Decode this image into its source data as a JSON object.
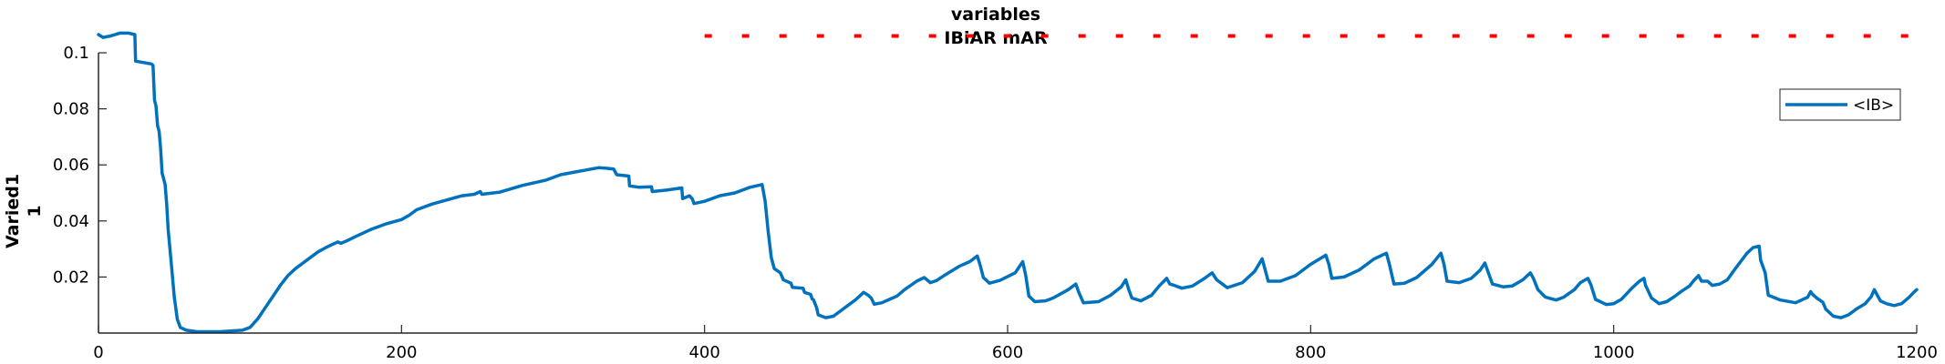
{
  "chart_data": {
    "type": "line",
    "title": [
      "variables",
      "IBiAR mAR"
    ],
    "ylabel": [
      "Varied1",
      "1"
    ],
    "xlabel": "",
    "xlim": [
      0,
      1200
    ],
    "ylim": [
      0,
      0.1
    ],
    "xticks": [
      0,
      200,
      400,
      600,
      800,
      1000,
      1200
    ],
    "xtick_labels": [
      "0",
      "200",
      "400",
      "600",
      "800",
      "1000",
      "1200"
    ],
    "yticks": [
      0.02,
      0.04,
      0.06,
      0.08,
      0.1
    ],
    "ytick_labels": [
      "0.02",
      "0.04",
      "0.06",
      "0.08",
      "0.1"
    ],
    "grid": false,
    "legend_position": "top-right",
    "series": [
      {
        "name": "<IB>",
        "color": "#0072BD",
        "points": [
          [
            0,
            0.1065
          ],
          [
            3,
            0.1055
          ],
          [
            8,
            0.106
          ],
          [
            14,
            0.107
          ],
          [
            20,
            0.107
          ],
          [
            24,
            0.1065
          ],
          [
            24.5,
            0.097
          ],
          [
            30,
            0.0965
          ],
          [
            35,
            0.096
          ],
          [
            36,
            0.0955
          ],
          [
            37,
            0.083
          ],
          [
            38,
            0.081
          ],
          [
            39,
            0.074
          ],
          [
            40,
            0.072
          ],
          [
            41,
            0.066
          ],
          [
            42,
            0.057
          ],
          [
            43,
            0.055
          ],
          [
            44,
            0.053
          ],
          [
            45,
            0.046
          ],
          [
            46,
            0.037
          ],
          [
            48,
            0.025
          ],
          [
            50,
            0.013
          ],
          [
            52,
            0.005
          ],
          [
            54,
            0.002
          ],
          [
            58,
            0.001
          ],
          [
            65,
            0.0005
          ],
          [
            80,
            0.0005
          ],
          [
            95,
            0.001
          ],
          [
            100,
            0.002
          ],
          [
            105,
            0.005
          ],
          [
            110,
            0.009
          ],
          [
            115,
            0.013
          ],
          [
            120,
            0.017
          ],
          [
            125,
            0.0205
          ],
          [
            130,
            0.023
          ],
          [
            135,
            0.025
          ],
          [
            140,
            0.027
          ],
          [
            145,
            0.029
          ],
          [
            150,
            0.0305
          ],
          [
            155,
            0.0318
          ],
          [
            158,
            0.0325
          ],
          [
            160,
            0.032
          ],
          [
            163,
            0.0327
          ],
          [
            170,
            0.0345
          ],
          [
            180,
            0.037
          ],
          [
            190,
            0.039
          ],
          [
            200,
            0.0405
          ],
          [
            205,
            0.042
          ],
          [
            210,
            0.044
          ],
          [
            220,
            0.046
          ],
          [
            230,
            0.0475
          ],
          [
            240,
            0.049
          ],
          [
            248,
            0.0495
          ],
          [
            252,
            0.0505
          ],
          [
            253,
            0.0495
          ],
          [
            265,
            0.0503
          ],
          [
            280,
            0.0527
          ],
          [
            295,
            0.0545
          ],
          [
            305,
            0.0565
          ],
          [
            315,
            0.0575
          ],
          [
            325,
            0.0585
          ],
          [
            330,
            0.059
          ],
          [
            335,
            0.0588
          ],
          [
            340,
            0.0585
          ],
          [
            342,
            0.0565
          ],
          [
            350,
            0.056
          ],
          [
            350.5,
            0.0525
          ],
          [
            357,
            0.052
          ],
          [
            365,
            0.0522
          ],
          [
            365.5,
            0.0505
          ],
          [
            375,
            0.051
          ],
          [
            385,
            0.0518
          ],
          [
            385.5,
            0.048
          ],
          [
            390,
            0.049
          ],
          [
            392,
            0.0478
          ],
          [
            393,
            0.0462
          ],
          [
            400,
            0.047
          ],
          [
            410,
            0.049
          ],
          [
            420,
            0.05
          ],
          [
            430,
            0.052
          ],
          [
            438,
            0.053
          ],
          [
            440,
            0.047
          ],
          [
            442,
            0.036
          ],
          [
            444,
            0.027
          ],
          [
            446,
            0.023
          ],
          [
            450,
            0.0215
          ],
          [
            452,
            0.019
          ],
          [
            457,
            0.0178
          ],
          [
            458,
            0.0163
          ],
          [
            465,
            0.016
          ],
          [
            466,
            0.0145
          ],
          [
            470,
            0.0138
          ],
          [
            471,
            0.0122
          ],
          [
            472,
            0.0118
          ],
          [
            474,
            0.009
          ],
          [
            475,
            0.0065
          ],
          [
            480,
            0.0055
          ],
          [
            485,
            0.006
          ],
          [
            490,
            0.008
          ],
          [
            495,
            0.01
          ],
          [
            500,
            0.012
          ],
          [
            505,
            0.0145
          ],
          [
            508,
            0.0135
          ],
          [
            510,
            0.0125
          ],
          [
            512,
            0.0103
          ],
          [
            517,
            0.0108
          ],
          [
            522,
            0.012
          ],
          [
            527,
            0.0132
          ],
          [
            532,
            0.0155
          ],
          [
            540,
            0.0185
          ],
          [
            545,
            0.0198
          ],
          [
            549,
            0.018
          ],
          [
            553,
            0.0187
          ],
          [
            558,
            0.0205
          ],
          [
            568,
            0.0238
          ],
          [
            575,
            0.0255
          ],
          [
            580,
            0.0275
          ],
          [
            582,
            0.024
          ],
          [
            584,
            0.0198
          ],
          [
            588,
            0.0178
          ],
          [
            595,
            0.0188
          ],
          [
            605,
            0.0215
          ],
          [
            610,
            0.0255
          ],
          [
            612,
            0.0205
          ],
          [
            614,
            0.0132
          ],
          [
            618,
            0.0112
          ],
          [
            625,
            0.0115
          ],
          [
            630,
            0.0125
          ],
          [
            640,
            0.0155
          ],
          [
            645,
            0.0175
          ],
          [
            647,
            0.0145
          ],
          [
            650,
            0.0108
          ],
          [
            660,
            0.0112
          ],
          [
            668,
            0.0135
          ],
          [
            675,
            0.0165
          ],
          [
            678,
            0.019
          ],
          [
            680,
            0.0155
          ],
          [
            682,
            0.0125
          ],
          [
            688,
            0.0115
          ],
          [
            695,
            0.0135
          ],
          [
            700,
            0.0168
          ],
          [
            705,
            0.0195
          ],
          [
            707,
            0.0175
          ],
          [
            710,
            0.017
          ],
          [
            715,
            0.016
          ],
          [
            722,
            0.0168
          ],
          [
            730,
            0.0195
          ],
          [
            735,
            0.0215
          ],
          [
            738,
            0.019
          ],
          [
            741,
            0.0178
          ],
          [
            745,
            0.0162
          ],
          [
            755,
            0.018
          ],
          [
            763,
            0.022
          ],
          [
            768,
            0.0265
          ],
          [
            770,
            0.0225
          ],
          [
            772,
            0.0185
          ],
          [
            780,
            0.0185
          ],
          [
            790,
            0.0205
          ],
          [
            800,
            0.0245
          ],
          [
            810,
            0.0278
          ],
          [
            812,
            0.0245
          ],
          [
            814,
            0.0195
          ],
          [
            822,
            0.02
          ],
          [
            832,
            0.0225
          ],
          [
            842,
            0.0265
          ],
          [
            850,
            0.0285
          ],
          [
            852,
            0.0245
          ],
          [
            855,
            0.0175
          ],
          [
            862,
            0.0178
          ],
          [
            870,
            0.0198
          ],
          [
            880,
            0.0245
          ],
          [
            886,
            0.0285
          ],
          [
            888,
            0.0245
          ],
          [
            890,
            0.0185
          ],
          [
            898,
            0.018
          ],
          [
            906,
            0.0195
          ],
          [
            912,
            0.0225
          ],
          [
            915,
            0.025
          ],
          [
            917,
            0.022
          ],
          [
            920,
            0.0175
          ],
          [
            927,
            0.0165
          ],
          [
            933,
            0.0168
          ],
          [
            940,
            0.019
          ],
          [
            945,
            0.0215
          ],
          [
            947,
            0.0195
          ],
          [
            950,
            0.0155
          ],
          [
            955,
            0.0128
          ],
          [
            962,
            0.0118
          ],
          [
            967,
            0.0128
          ],
          [
            974,
            0.0155
          ],
          [
            978,
            0.018
          ],
          [
            983,
            0.0195
          ],
          [
            985,
            0.0172
          ],
          [
            988,
            0.012
          ],
          [
            995,
            0.0102
          ],
          [
            1000,
            0.0105
          ],
          [
            1005,
            0.012
          ],
          [
            1012,
            0.016
          ],
          [
            1017,
            0.0185
          ],
          [
            1020,
            0.0195
          ],
          [
            1021,
            0.017
          ],
          [
            1025,
            0.0125
          ],
          [
            1030,
            0.0105
          ],
          [
            1035,
            0.0112
          ],
          [
            1040,
            0.013
          ],
          [
            1045,
            0.015
          ],
          [
            1050,
            0.0168
          ],
          [
            1053,
            0.0188
          ],
          [
            1056,
            0.0205
          ],
          [
            1058,
            0.0185
          ],
          [
            1062,
            0.0185
          ],
          [
            1065,
            0.017
          ],
          [
            1070,
            0.0175
          ],
          [
            1075,
            0.019
          ],
          [
            1080,
            0.0228
          ],
          [
            1088,
            0.0285
          ],
          [
            1092,
            0.0305
          ],
          [
            1096,
            0.031
          ],
          [
            1097,
            0.026
          ],
          [
            1100,
            0.0215
          ],
          [
            1102,
            0.0135
          ],
          [
            1110,
            0.0118
          ],
          [
            1120,
            0.0108
          ],
          [
            1128,
            0.0128
          ],
          [
            1130,
            0.0148
          ],
          [
            1131,
            0.014
          ],
          [
            1134,
            0.0125
          ],
          [
            1138,
            0.011
          ],
          [
            1140,
            0.0085
          ],
          [
            1145,
            0.006
          ],
          [
            1150,
            0.0055
          ],
          [
            1155,
            0.0065
          ],
          [
            1160,
            0.0085
          ],
          [
            1166,
            0.0105
          ],
          [
            1170,
            0.013
          ],
          [
            1172,
            0.0155
          ],
          [
            1173,
            0.0145
          ],
          [
            1176,
            0.0115
          ],
          [
            1180,
            0.0105
          ],
          [
            1185,
            0.0098
          ],
          [
            1190,
            0.0105
          ],
          [
            1195,
            0.0128
          ],
          [
            1198,
            0.0145
          ],
          [
            1200,
            0.0155
          ]
        ]
      },
      {
        "type": "marker-line",
        "color": "#FF0000",
        "y": 0.106,
        "x_start": 400,
        "x_end": 1200
      }
    ]
  }
}
